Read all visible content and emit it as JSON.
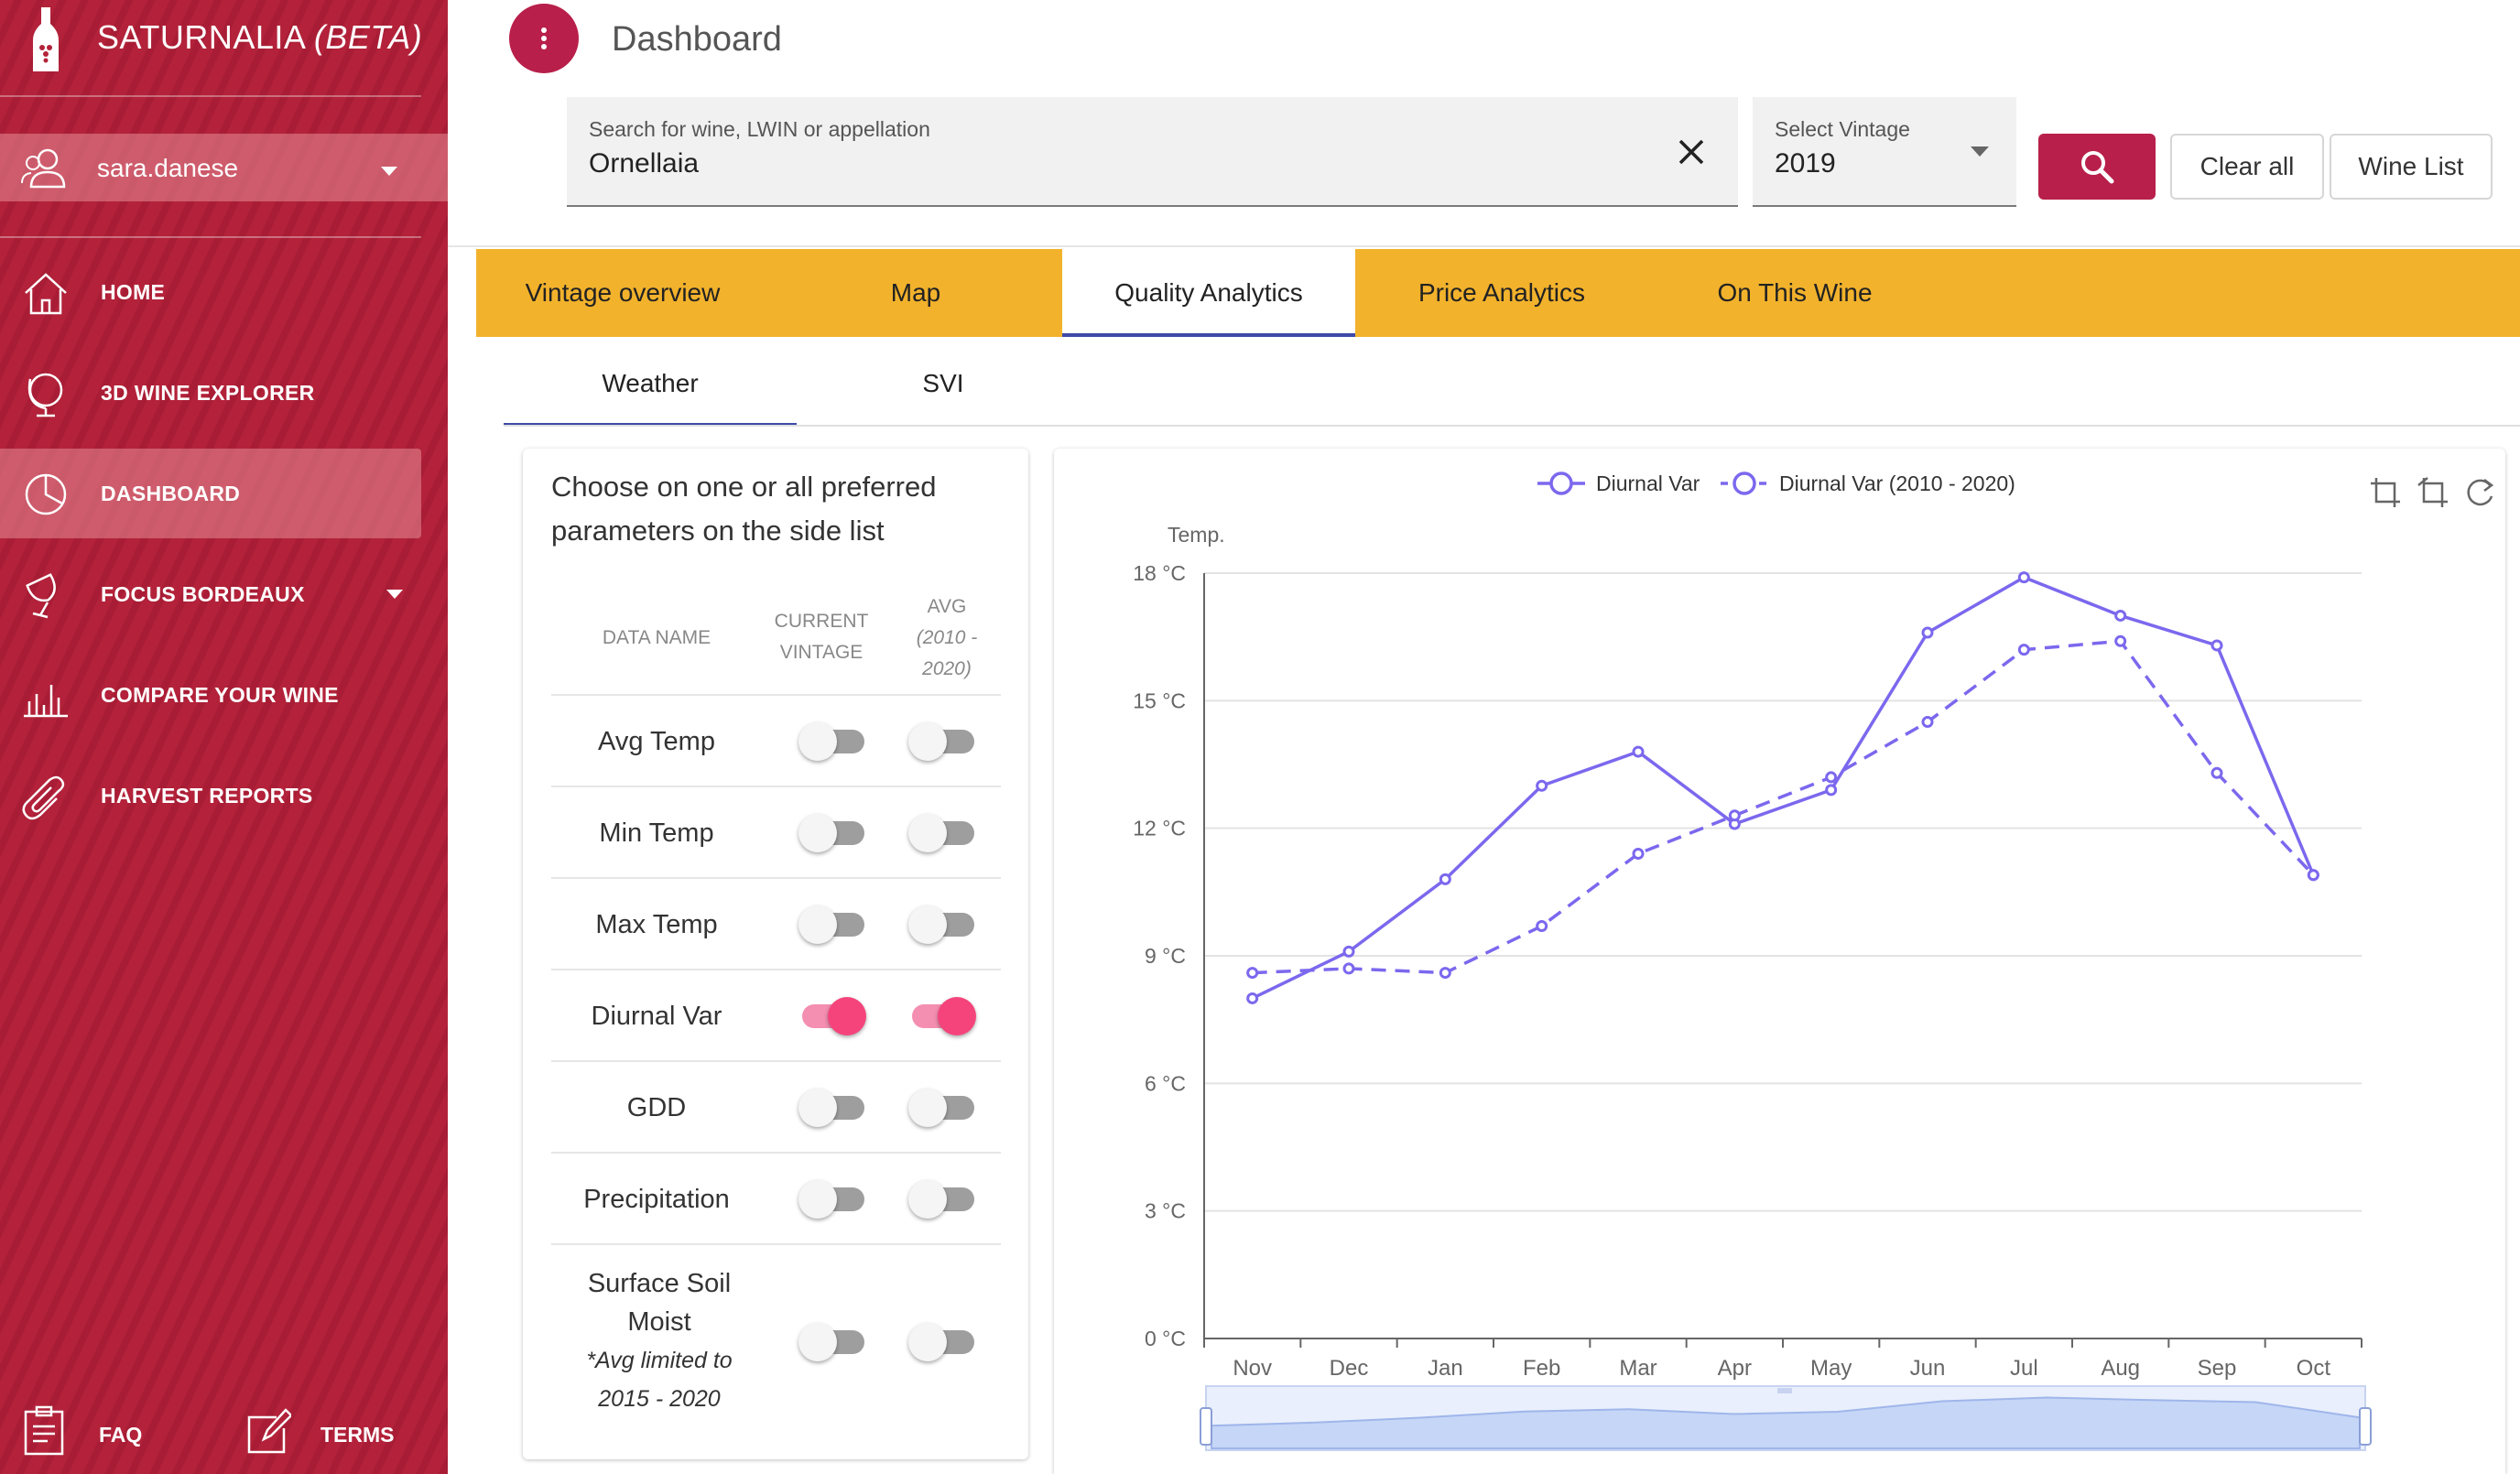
{
  "app": {
    "name": "SATURNALIA",
    "beta_label": "(BETA)"
  },
  "user": {
    "name": "sara.danese"
  },
  "nav": {
    "items": [
      {
        "label": "HOME",
        "icon": "home-icon"
      },
      {
        "label": "3D WINE EXPLORER",
        "icon": "globe-icon"
      },
      {
        "label": "DASHBOARD",
        "icon": "pie-chart-icon",
        "active": true
      },
      {
        "label": "FOCUS BORDEAUX",
        "icon": "wine-glass-icon"
      },
      {
        "label": "COMPARE YOUR WINE",
        "icon": "bar-chart-icon"
      },
      {
        "label": "HARVEST REPORTS",
        "icon": "paperclip-icon"
      }
    ],
    "footer": [
      {
        "label": "FAQ",
        "icon": "clipboard-icon"
      },
      {
        "label": "TERMS",
        "icon": "edit-icon"
      }
    ]
  },
  "header": {
    "title": "Dashboard"
  },
  "search": {
    "label": "Search for wine, LWIN or appellation",
    "value": "Ornellaia"
  },
  "vintage": {
    "label": "Select Vintage",
    "value": "2019"
  },
  "buttons": {
    "clear_all": "Clear all",
    "wine_list": "Wine List"
  },
  "tabs": [
    {
      "label": "Vintage overview"
    },
    {
      "label": "Map"
    },
    {
      "label": "Quality Analytics",
      "active": true
    },
    {
      "label": "Price Analytics"
    },
    {
      "label": "On This Wine"
    }
  ],
  "subtabs": [
    {
      "label": "Weather",
      "active": true
    },
    {
      "label": "SVI"
    }
  ],
  "params": {
    "intro": "Choose on one or all preferred parameters on the side list",
    "headers": {
      "name": "DATA NAME",
      "current_line1": "CURRENT",
      "current_line2": "VINTAGE",
      "avg_line1": "AVG",
      "avg_line2": "(2010 -",
      "avg_line3": "2020)"
    },
    "rows": [
      {
        "name": "Avg Temp",
        "current": false,
        "avg": false
      },
      {
        "name": "Min Temp",
        "current": false,
        "avg": false
      },
      {
        "name": "Max Temp",
        "current": false,
        "avg": false
      },
      {
        "name": "Diurnal Var",
        "current": true,
        "avg": true
      },
      {
        "name": "GDD",
        "current": false,
        "avg": false
      },
      {
        "name": "Precipitation",
        "current": false,
        "avg": false
      },
      {
        "name": "Surface Soil Moist",
        "current": false,
        "avg": false,
        "note_line1": "*Avg limited to",
        "note_line2": "2015 - 2020"
      }
    ]
  },
  "chart_data": {
    "type": "line",
    "ylabel": "Temp.",
    "y_unit": "°C",
    "categories": [
      "Nov",
      "Dec",
      "Jan",
      "Feb",
      "Mar",
      "Apr",
      "May",
      "Jun",
      "Jul",
      "Aug",
      "Sep",
      "Oct"
    ],
    "ylim": [
      0,
      18
    ],
    "yticks": [
      0,
      3,
      6,
      9,
      12,
      15,
      18
    ],
    "grid": true,
    "legend_position": "top-center",
    "series": [
      {
        "name": "Diurnal Var",
        "style": "solid",
        "color": "#7b68ee",
        "values": [
          8.0,
          9.1,
          10.8,
          13.0,
          13.8,
          12.1,
          12.9,
          16.6,
          17.9,
          17.0,
          16.3,
          10.9
        ]
      },
      {
        "name": "Diurnal Var (2010 - 2020)",
        "style": "dashed",
        "color": "#7b68ee",
        "values": [
          8.6,
          8.7,
          8.6,
          9.7,
          11.4,
          12.3,
          13.2,
          14.5,
          16.2,
          16.4,
          13.3,
          10.9
        ]
      }
    ]
  },
  "colors": {
    "sidebar": "#b3223a",
    "accent": "#b81f4a",
    "tab_bar": "#f2b22c",
    "tab_indicator": "#3d4aa8",
    "toggle_on": "#f5447c",
    "series": "#7b68ee"
  }
}
